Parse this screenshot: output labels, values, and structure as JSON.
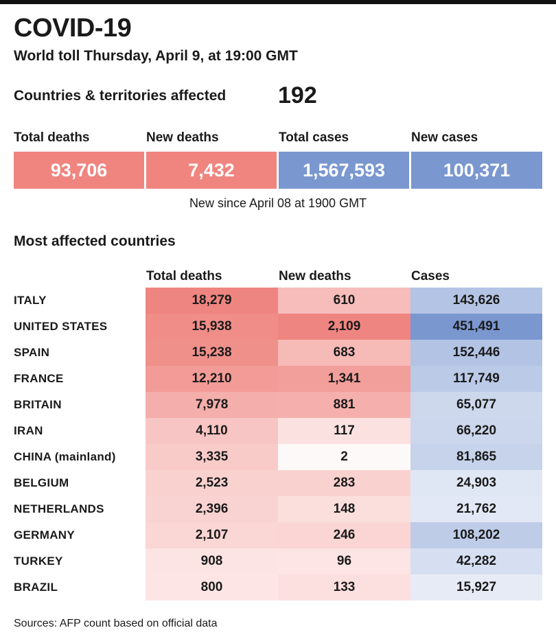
{
  "header": {
    "title": "COVID-19",
    "subtitle": "World toll Thursday, April 9, at 19:00 GMT"
  },
  "affected": {
    "label": "Countries & territories affected",
    "value": "192"
  },
  "summary": {
    "items": [
      {
        "label": "Total deaths",
        "value": "93,706",
        "color": "#f0847f"
      },
      {
        "label": "New deaths",
        "value": "7,432",
        "color": "#f0847f"
      },
      {
        "label": "Total cases",
        "value": "1,567,593",
        "color": "#7a97d0"
      },
      {
        "label": "New cases",
        "value": "100,371",
        "color": "#7a97d0"
      }
    ],
    "note": "New since  April 08 at 1900 GMT"
  },
  "table": {
    "title": "Most affected countries",
    "headers": [
      "Total deaths",
      "New deaths",
      "Cases"
    ]
  },
  "colors": {
    "deaths_scale": "#ef8580",
    "cases_scale": "#7a97d0",
    "top_bar": "#111111"
  },
  "chart_data": {
    "type": "table",
    "title": "Most affected countries",
    "columns": [
      "Total deaths",
      "New deaths",
      "Cases"
    ],
    "rows": [
      {
        "country": "ITALY",
        "total_deaths": "18,279",
        "new_deaths": "610",
        "cases": "143,626",
        "td": 18279,
        "nd": 610,
        "c": 143626
      },
      {
        "country": "UNITED STATES",
        "total_deaths": "15,938",
        "new_deaths": "2,109",
        "cases": "451,491",
        "td": 15938,
        "nd": 2109,
        "c": 451491
      },
      {
        "country": "SPAIN",
        "total_deaths": "15,238",
        "new_deaths": "683",
        "cases": "152,446",
        "td": 15238,
        "nd": 683,
        "c": 152446
      },
      {
        "country": "FRANCE",
        "total_deaths": "12,210",
        "new_deaths": "1,341",
        "cases": "117,749",
        "td": 12210,
        "nd": 1341,
        "c": 117749
      },
      {
        "country": "BRITAIN",
        "total_deaths": "7,978",
        "new_deaths": "881",
        "cases": "65,077",
        "td": 7978,
        "nd": 881,
        "c": 65077
      },
      {
        "country": "IRAN",
        "total_deaths": "4,110",
        "new_deaths": "117",
        "cases": "66,220",
        "td": 4110,
        "nd": 117,
        "c": 66220
      },
      {
        "country": "CHINA (mainland)",
        "total_deaths": "3,335",
        "new_deaths": "2",
        "cases": "81,865",
        "td": 3335,
        "nd": 2,
        "c": 81865
      },
      {
        "country": "BELGIUM",
        "total_deaths": "2,523",
        "new_deaths": "283",
        "cases": "24,903",
        "td": 2523,
        "nd": 283,
        "c": 24903
      },
      {
        "country": "NETHERLANDS",
        "total_deaths": "2,396",
        "new_deaths": "148",
        "cases": "21,762",
        "td": 2396,
        "nd": 148,
        "c": 21762
      },
      {
        "country": "GERMANY",
        "total_deaths": "2,107",
        "new_deaths": "246",
        "cases": "108,202",
        "td": 2107,
        "nd": 246,
        "c": 108202
      },
      {
        "country": "TURKEY",
        "total_deaths": "908",
        "new_deaths": "96",
        "cases": "42,282",
        "td": 908,
        "nd": 96,
        "c": 42282
      },
      {
        "country": "BRAZIL",
        "total_deaths": "800",
        "new_deaths": "133",
        "cases": "15,927",
        "td": 800,
        "nd": 133,
        "c": 15927
      }
    ]
  },
  "footer": {
    "source": "Sources:  AFP count based on official data"
  }
}
